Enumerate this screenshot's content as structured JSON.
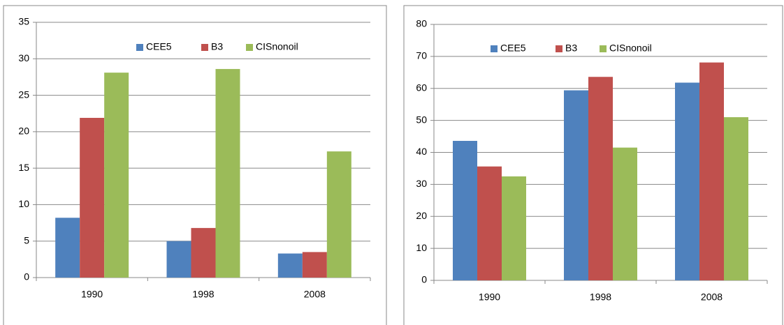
{
  "chart_data": [
    {
      "type": "bar",
      "categories": [
        "1990",
        "1998",
        "2008"
      ],
      "series": [
        {
          "name": "CEE5",
          "color": "#4f81bd",
          "values": [
            8.2,
            5.0,
            3.3
          ]
        },
        {
          "name": "B3",
          "color": "#c0504d",
          "values": [
            21.9,
            6.8,
            3.5
          ]
        },
        {
          "name": "CISnonoil",
          "color": "#9bbb59",
          "values": [
            28.1,
            28.6,
            17.3
          ]
        }
      ],
      "ylim": [
        0,
        35
      ],
      "yticks": [
        0,
        5,
        10,
        15,
        20,
        25,
        30,
        35
      ],
      "grid": true,
      "legend": "top"
    },
    {
      "type": "bar",
      "categories": [
        "1990",
        "1998",
        "2008"
      ],
      "series": [
        {
          "name": "CEE5",
          "color": "#4f81bd",
          "values": [
            43.6,
            59.4,
            61.8
          ]
        },
        {
          "name": "B3",
          "color": "#c0504d",
          "values": [
            35.6,
            63.6,
            68.1
          ]
        },
        {
          "name": "CISnonoil",
          "color": "#9bbb59",
          "values": [
            32.5,
            41.5,
            51.0
          ]
        }
      ],
      "ylim": [
        0,
        80
      ],
      "yticks": [
        0,
        10,
        20,
        30,
        40,
        50,
        60,
        70,
        80
      ],
      "grid": true,
      "legend": "top"
    }
  ]
}
